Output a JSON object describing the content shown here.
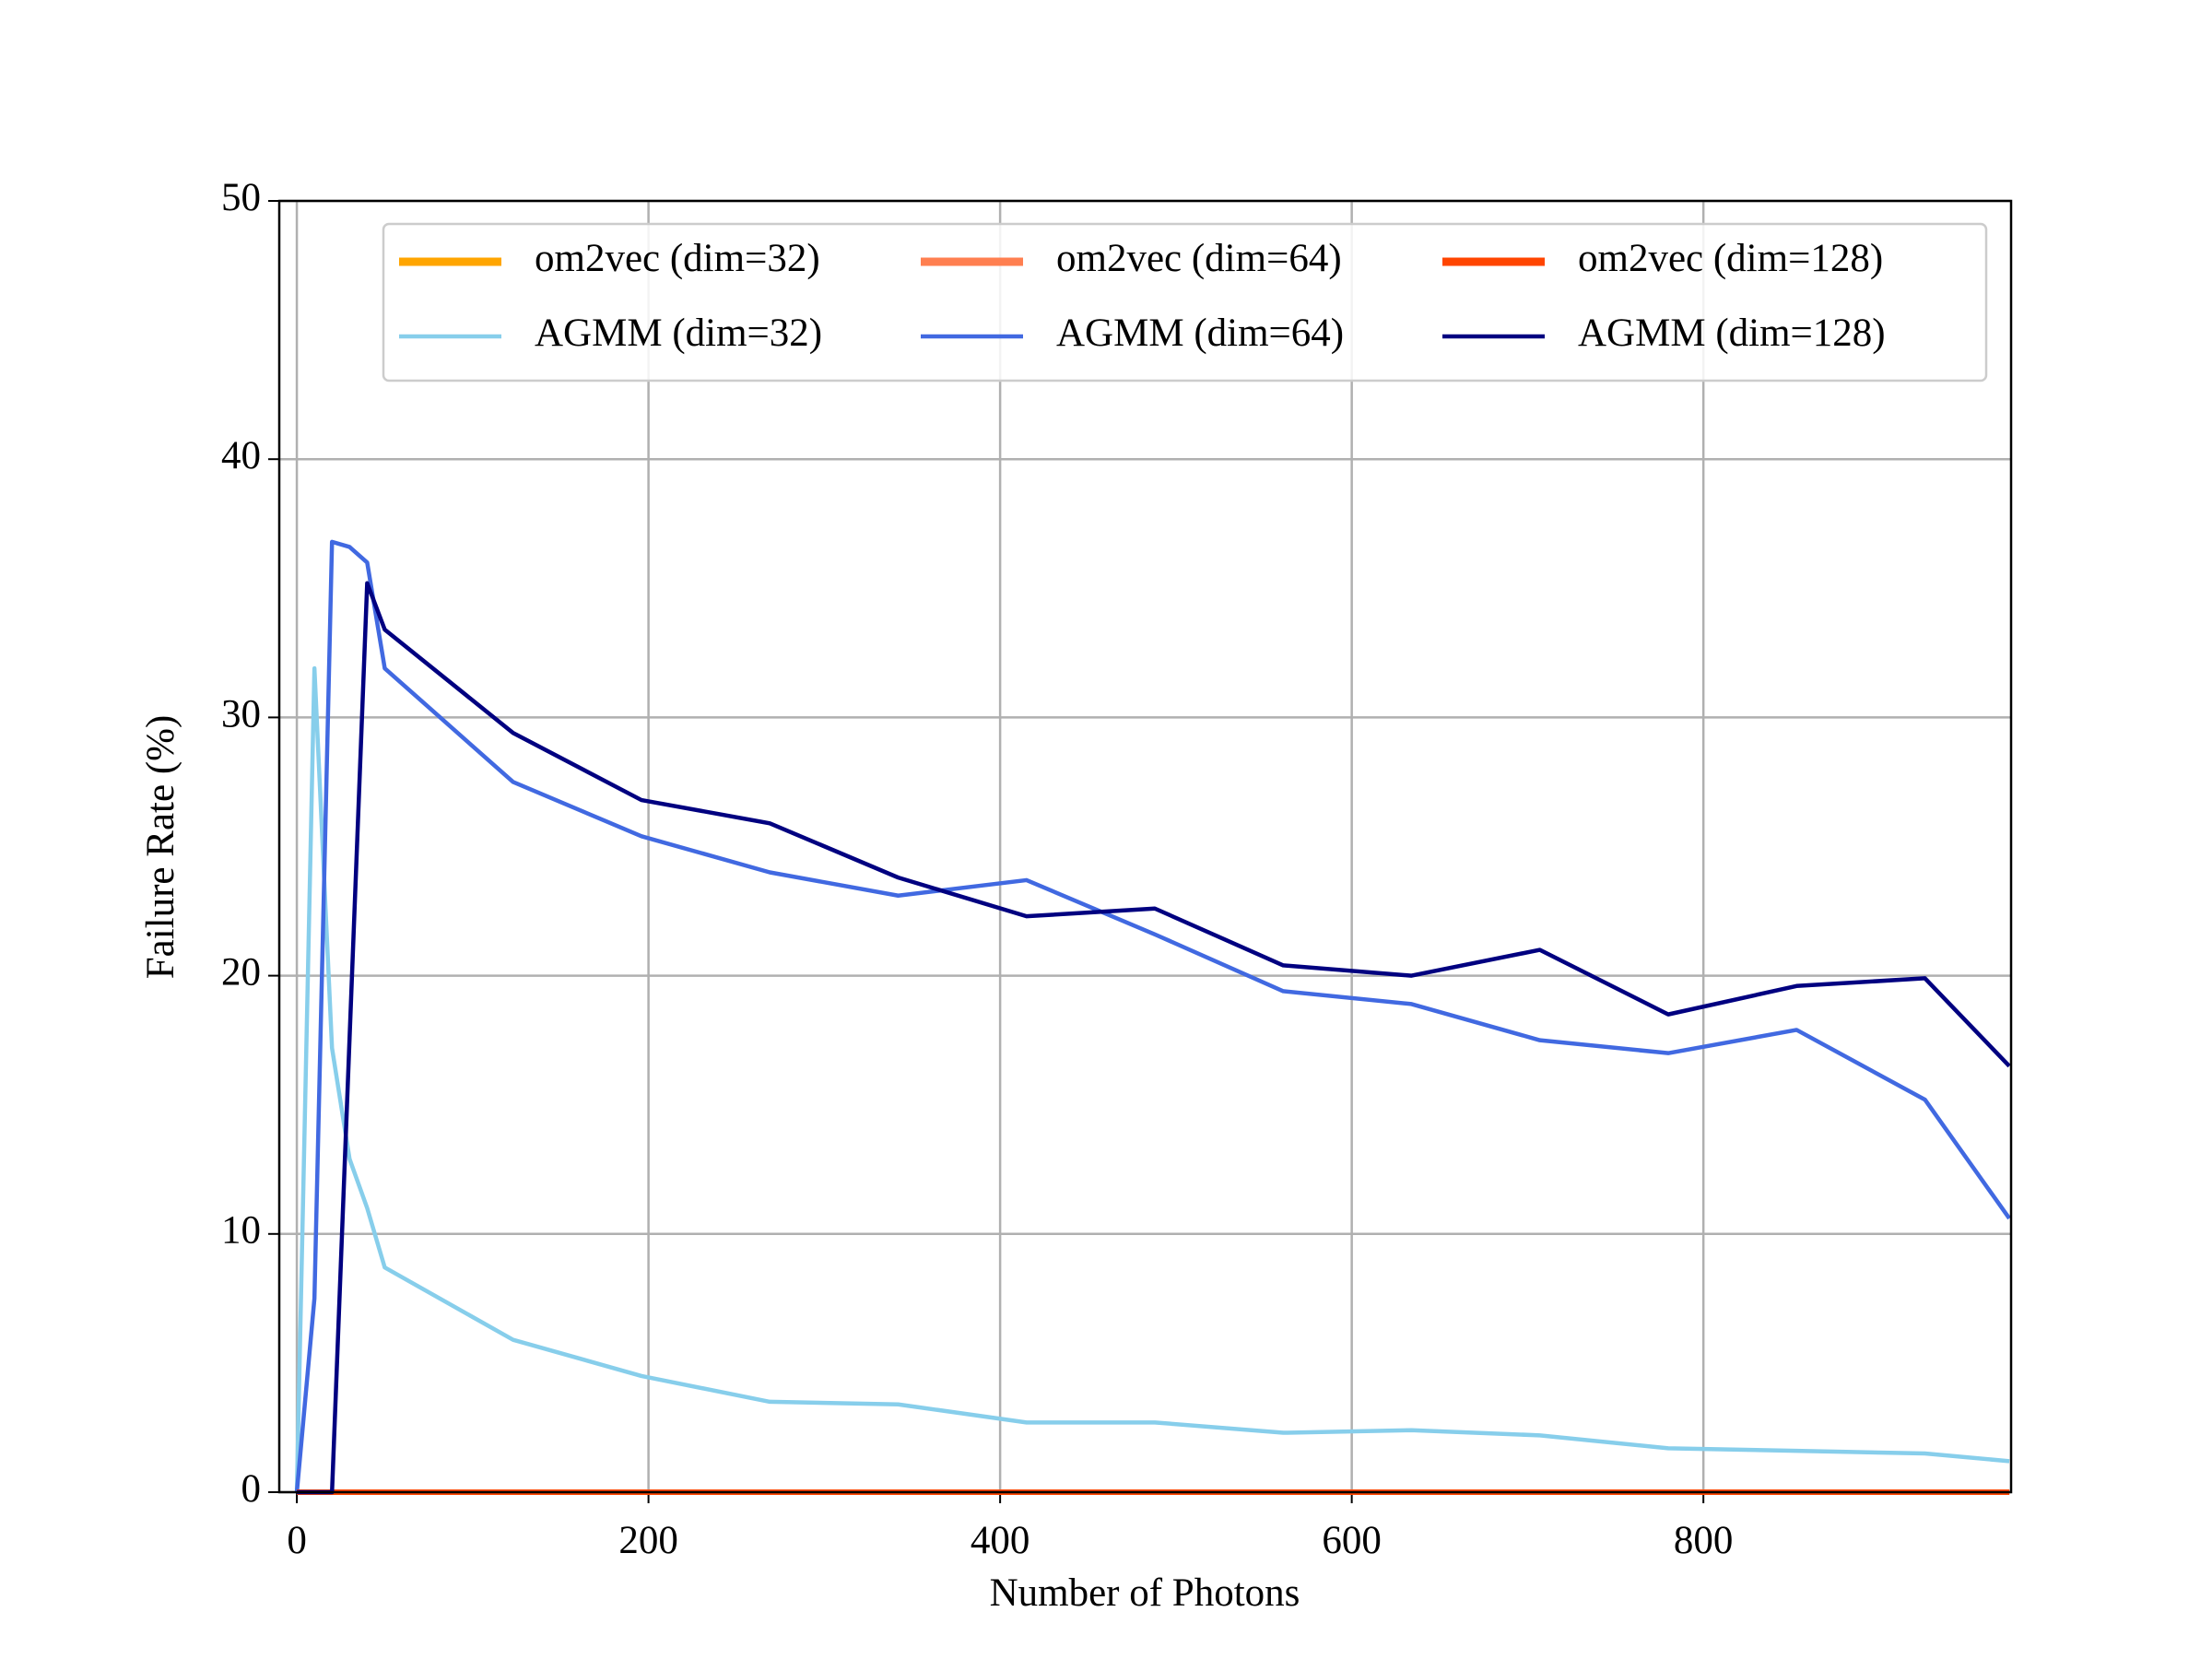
{
  "chart_data": {
    "type": "line",
    "xlabel": "Number of Photons",
    "ylabel": "Failure Rate (%)",
    "x": [
      0,
      10,
      20,
      30,
      40,
      50,
      123,
      196,
      269,
      342,
      415,
      488,
      561,
      634,
      707,
      780,
      853,
      926,
      974
    ],
    "series": [
      {
        "name": "om2vec (dim=32)",
        "color": "#ffa500",
        "values": [
          0,
          0,
          0,
          0,
          0,
          0,
          0,
          0,
          0,
          0,
          0,
          0,
          0,
          0,
          0,
          0,
          0,
          0,
          0
        ]
      },
      {
        "name": "AGMM (dim=32)",
        "color": "#87ceeb",
        "values": [
          0,
          31.9,
          17.2,
          12.9,
          11.0,
          8.7,
          5.9,
          4.5,
          3.5,
          3.4,
          2.7,
          2.7,
          2.3,
          2.4,
          2.2,
          1.7,
          1.6,
          1.5,
          1.2
        ]
      },
      {
        "name": "om2vec (dim=64)",
        "color": "#ff7f50",
        "values": [
          0,
          0,
          0,
          0,
          0,
          0,
          0,
          0,
          0,
          0,
          0,
          0,
          0,
          0,
          0,
          0,
          0,
          0,
          0
        ]
      },
      {
        "name": "AGMM (dim=64)",
        "color": "#4169e1",
        "values": [
          0,
          7.5,
          36.8,
          36.6,
          36.0,
          31.9,
          27.5,
          25.4,
          24.0,
          23.1,
          23.7,
          21.6,
          19.4,
          18.9,
          17.5,
          17.0,
          17.9,
          15.2,
          10.6
        ]
      },
      {
        "name": "om2vec (dim=128)",
        "color": "#ff4500",
        "values": [
          0,
          0,
          0,
          0,
          0,
          0,
          0,
          0,
          0,
          0,
          0,
          0,
          0,
          0,
          0,
          0,
          0,
          0,
          0
        ]
      },
      {
        "name": "AGMM (dim=128)",
        "color": "#000080",
        "values": [
          0,
          0,
          0,
          17.6,
          35.2,
          33.4,
          29.4,
          26.8,
          25.9,
          23.8,
          22.3,
          22.6,
          20.4,
          20.0,
          21.0,
          18.5,
          19.6,
          19.9,
          16.5
        ]
      }
    ],
    "xlim": [
      -10,
      975
    ],
    "ylim": [
      0,
      50
    ],
    "xticks": [
      0,
      200,
      400,
      600,
      800
    ],
    "yticks": [
      0,
      10,
      20,
      30,
      40,
      50
    ],
    "grid": true,
    "legend": "upper right"
  }
}
